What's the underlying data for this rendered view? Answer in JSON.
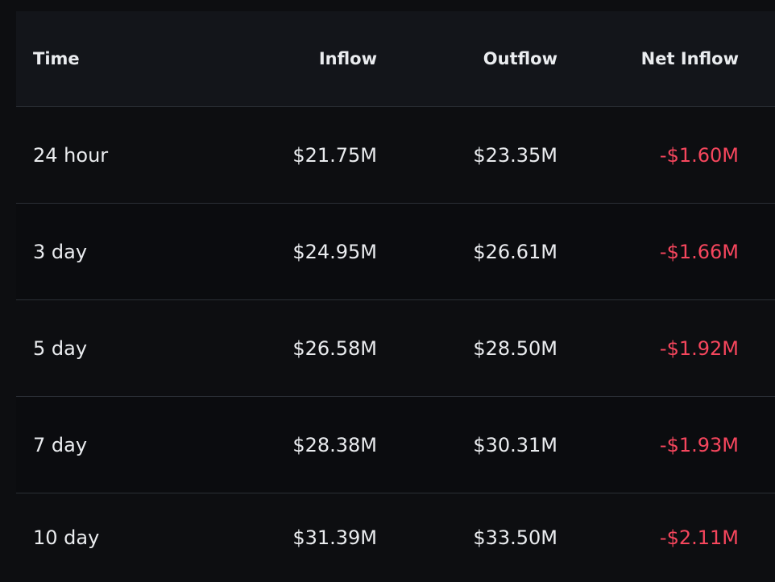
{
  "table": {
    "headers": {
      "time": "Time",
      "inflow": "Inflow",
      "outflow": "Outflow",
      "net_inflow": "Net Inflow"
    },
    "rows": [
      {
        "time": "24 hour",
        "inflow": "$21.75M",
        "outflow": "$23.35M",
        "net_inflow": "-$1.60M"
      },
      {
        "time": "3 day",
        "inflow": "$24.95M",
        "outflow": "$26.61M",
        "net_inflow": "-$1.66M"
      },
      {
        "time": "5 day",
        "inflow": "$26.58M",
        "outflow": "$28.50M",
        "net_inflow": "-$1.92M"
      },
      {
        "time": "7 day",
        "inflow": "$28.38M",
        "outflow": "$30.31M",
        "net_inflow": "-$1.93M"
      },
      {
        "time": "10 day",
        "inflow": "$31.39M",
        "outflow": "$33.50M",
        "net_inflow": "-$2.11M"
      }
    ],
    "colors": {
      "background": "#0d0e11",
      "header_background": "#13151a",
      "text": "#eaecef",
      "negative": "#f6465d",
      "divider": "#2b2f36"
    }
  }
}
